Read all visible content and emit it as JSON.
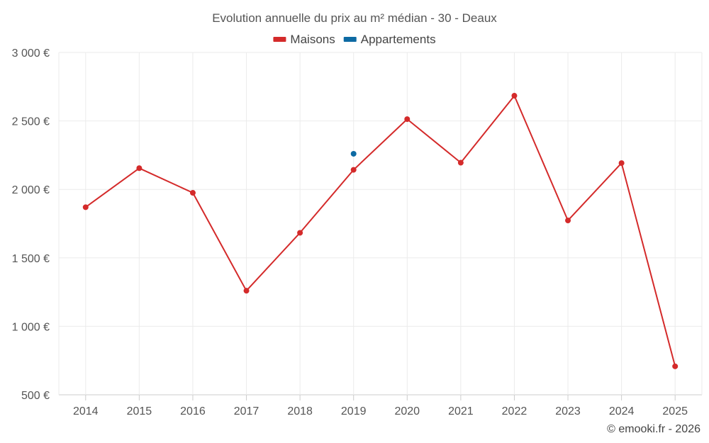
{
  "chart_data": {
    "type": "line",
    "title": "Evolution annuelle du prix au m² médian - 30 - Deaux",
    "categories": [
      "2014",
      "2015",
      "2016",
      "2017",
      "2018",
      "2019",
      "2020",
      "2021",
      "2022",
      "2023",
      "2024",
      "2025"
    ],
    "series": [
      {
        "name": "Maisons",
        "color": "#d42a2a",
        "values": [
          1870,
          2155,
          1975,
          1260,
          1683,
          2143,
          2513,
          2195,
          2684,
          1773,
          2192,
          708
        ]
      },
      {
        "name": "Appartements",
        "color": "#0d6aa3",
        "values": [
          null,
          null,
          null,
          null,
          null,
          2260,
          null,
          null,
          null,
          null,
          null,
          null
        ]
      }
    ],
    "ylim": [
      500,
      3000
    ],
    "yticks": [
      500,
      1000,
      1500,
      2000,
      2500,
      3000
    ],
    "ytick_labels": [
      "500 €",
      "1 000 €",
      "1 500 €",
      "2 000 €",
      "2 500 €",
      "3 000 €"
    ],
    "xlabel": "",
    "ylabel": "",
    "grid": true,
    "legend": "top-center",
    "credit": "© emooki.fr - 2026"
  }
}
